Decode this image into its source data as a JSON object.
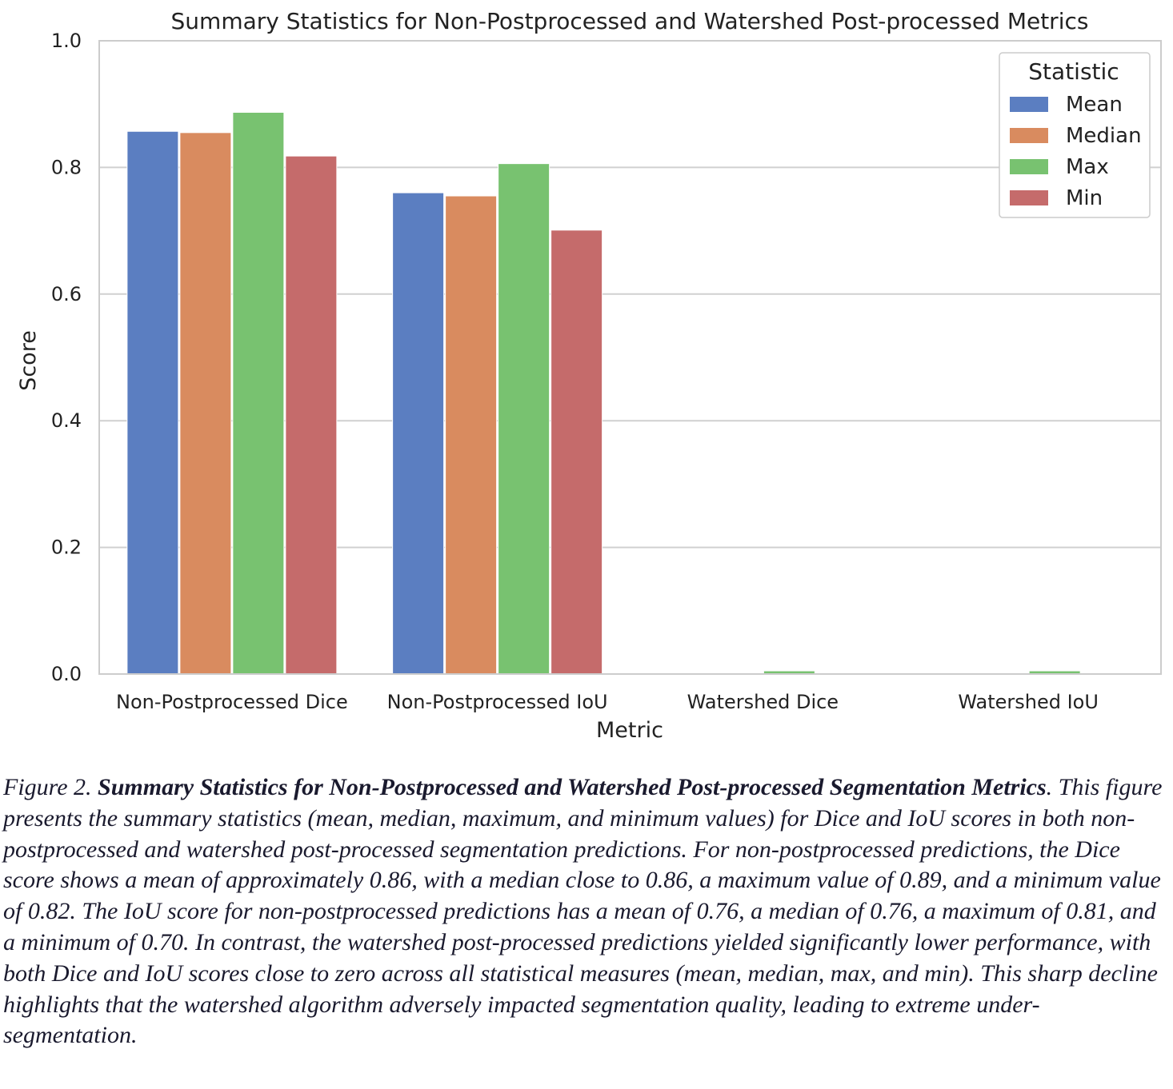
{
  "chart_data": {
    "type": "bar",
    "title": "Summary Statistics for Non-Postprocessed and Watershed Post-processed Metrics",
    "xlabel": "Metric",
    "ylabel": "Score",
    "ylim": [
      0,
      1.0
    ],
    "yticks": [
      "0.0",
      "0.2",
      "0.4",
      "0.6",
      "0.8",
      "1.0"
    ],
    "grid": true,
    "legend": {
      "title": "Statistic",
      "position": "top-right"
    },
    "categories": [
      "Non-Postprocessed Dice",
      "Non-Postprocessed IoU",
      "Watershed Dice",
      "Watershed IoU"
    ],
    "series": [
      {
        "name": "Mean",
        "color": "#5b7ec1",
        "values": [
          0.857,
          0.76,
          0.0,
          0.0
        ]
      },
      {
        "name": "Median",
        "color": "#d98b5f",
        "values": [
          0.855,
          0.755,
          0.0,
          0.0
        ]
      },
      {
        "name": "Max",
        "color": "#78c270",
        "values": [
          0.887,
          0.806,
          0.005,
          0.005
        ]
      },
      {
        "name": "Min",
        "color": "#c56b6b",
        "values": [
          0.818,
          0.701,
          0.0,
          0.0
        ]
      }
    ]
  },
  "caption": {
    "figure_label": "Figure 2. ",
    "bold_title": "Summary Statistics for Non-Postprocessed and Watershed Post-processed Segmentation Metrics",
    "body": ". This figure presents the summary statistics (mean, median, maximum, and minimum values) for Dice and IoU scores in both non-postprocessed and watershed post-processed segmentation predictions. For non-postprocessed predictions, the Dice score shows a mean of approximately 0.86, with a median close to 0.86, a maximum value of 0.89, and a minimum value of 0.82. The IoU score for non-postprocessed predictions has a mean of 0.76, a median of 0.76, a maximum of 0.81, and a minimum of 0.70. In contrast, the watershed post-processed predictions yielded significantly lower performance, with both Dice and IoU scores close to zero across all statistical measures (mean, median, max, and min). This sharp decline highlights that the watershed algorithm adversely impacted segmentation quality, leading to extreme under-segmentation."
  }
}
